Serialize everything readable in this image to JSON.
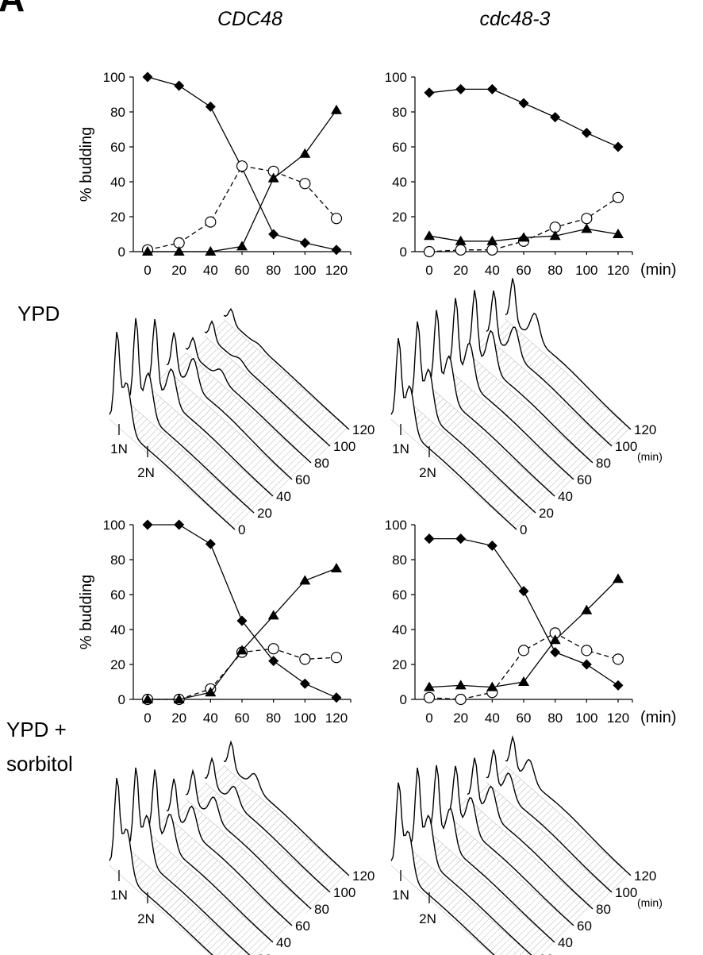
{
  "figure": {
    "panel_letter": "A",
    "col_titles": [
      "CDC48",
      "cdc48-3"
    ],
    "row_labels": {
      "ypd": "YPD",
      "ypd_sorbitol_1": "YPD +",
      "ypd_sorbitol_2": "sorbitol"
    },
    "y_axis_label": "% budding",
    "time_unit": "(min)",
    "flow": {
      "time_labels": [
        "0",
        "20",
        "40",
        "60",
        "80",
        "100",
        "120"
      ],
      "peak_labels": [
        "1N",
        "2N"
      ],
      "unit": "(min)"
    }
  },
  "series_styles": [
    {
      "marker": "diamond",
      "dash": false
    },
    {
      "marker": "circle",
      "dash": true
    },
    {
      "marker": "triangle",
      "dash": false
    }
  ],
  "chart_data": [
    {
      "type": "line",
      "condition": "YPD",
      "strain": "CDC48",
      "xlabel": "",
      "ylabel": "% budding",
      "x": [
        0,
        20,
        40,
        60,
        80,
        100,
        120
      ],
      "ylim": [
        0,
        100
      ],
      "yticks": [
        0,
        20,
        40,
        60,
        80,
        100
      ],
      "series": [
        {
          "values": [
            100,
            95,
            83,
            48,
            10,
            5,
            1
          ]
        },
        {
          "values": [
            1,
            5,
            17,
            49,
            46,
            39,
            19
          ]
        },
        {
          "values": [
            0,
            0,
            0,
            3,
            42,
            56,
            81
          ]
        }
      ]
    },
    {
      "type": "line",
      "condition": "YPD",
      "strain": "cdc48-3",
      "xlabel": "(min)",
      "ylabel": "",
      "x": [
        0,
        20,
        40,
        60,
        80,
        100,
        120
      ],
      "ylim": [
        0,
        100
      ],
      "yticks": [
        0,
        20,
        40,
        60,
        80,
        100
      ],
      "series": [
        {
          "values": [
            91,
            93,
            93,
            85,
            77,
            68,
            60
          ]
        },
        {
          "values": [
            0,
            1,
            1,
            6,
            14,
            19,
            31
          ]
        },
        {
          "values": [
            9,
            6,
            6,
            8,
            9,
            13,
            10
          ]
        }
      ]
    },
    {
      "type": "line",
      "condition": "YPD + sorbitol",
      "strain": "CDC48",
      "xlabel": "",
      "ylabel": "% budding",
      "x": [
        0,
        20,
        40,
        60,
        80,
        100,
        120
      ],
      "ylim": [
        0,
        100
      ],
      "yticks": [
        0,
        20,
        40,
        60,
        80,
        100
      ],
      "series": [
        {
          "values": [
            100,
            100,
            89,
            45,
            22,
            9,
            1
          ]
        },
        {
          "values": [
            0,
            0,
            6,
            27,
            29,
            23,
            24
          ]
        },
        {
          "values": [
            0,
            0,
            4,
            28,
            48,
            68,
            75
          ]
        }
      ]
    },
    {
      "type": "line",
      "condition": "YPD + sorbitol",
      "strain": "cdc48-3",
      "xlabel": "(min)",
      "ylabel": "",
      "x": [
        0,
        20,
        40,
        60,
        80,
        100,
        120
      ],
      "ylim": [
        0,
        100
      ],
      "yticks": [
        0,
        20,
        40,
        60,
        80,
        100
      ],
      "series": [
        {
          "values": [
            92,
            92,
            88,
            62,
            27,
            20,
            8
          ]
        },
        {
          "values": [
            1,
            0,
            4,
            28,
            38,
            28,
            23
          ]
        },
        {
          "values": [
            7,
            8,
            7,
            10,
            34,
            51,
            69
          ]
        }
      ]
    }
  ]
}
